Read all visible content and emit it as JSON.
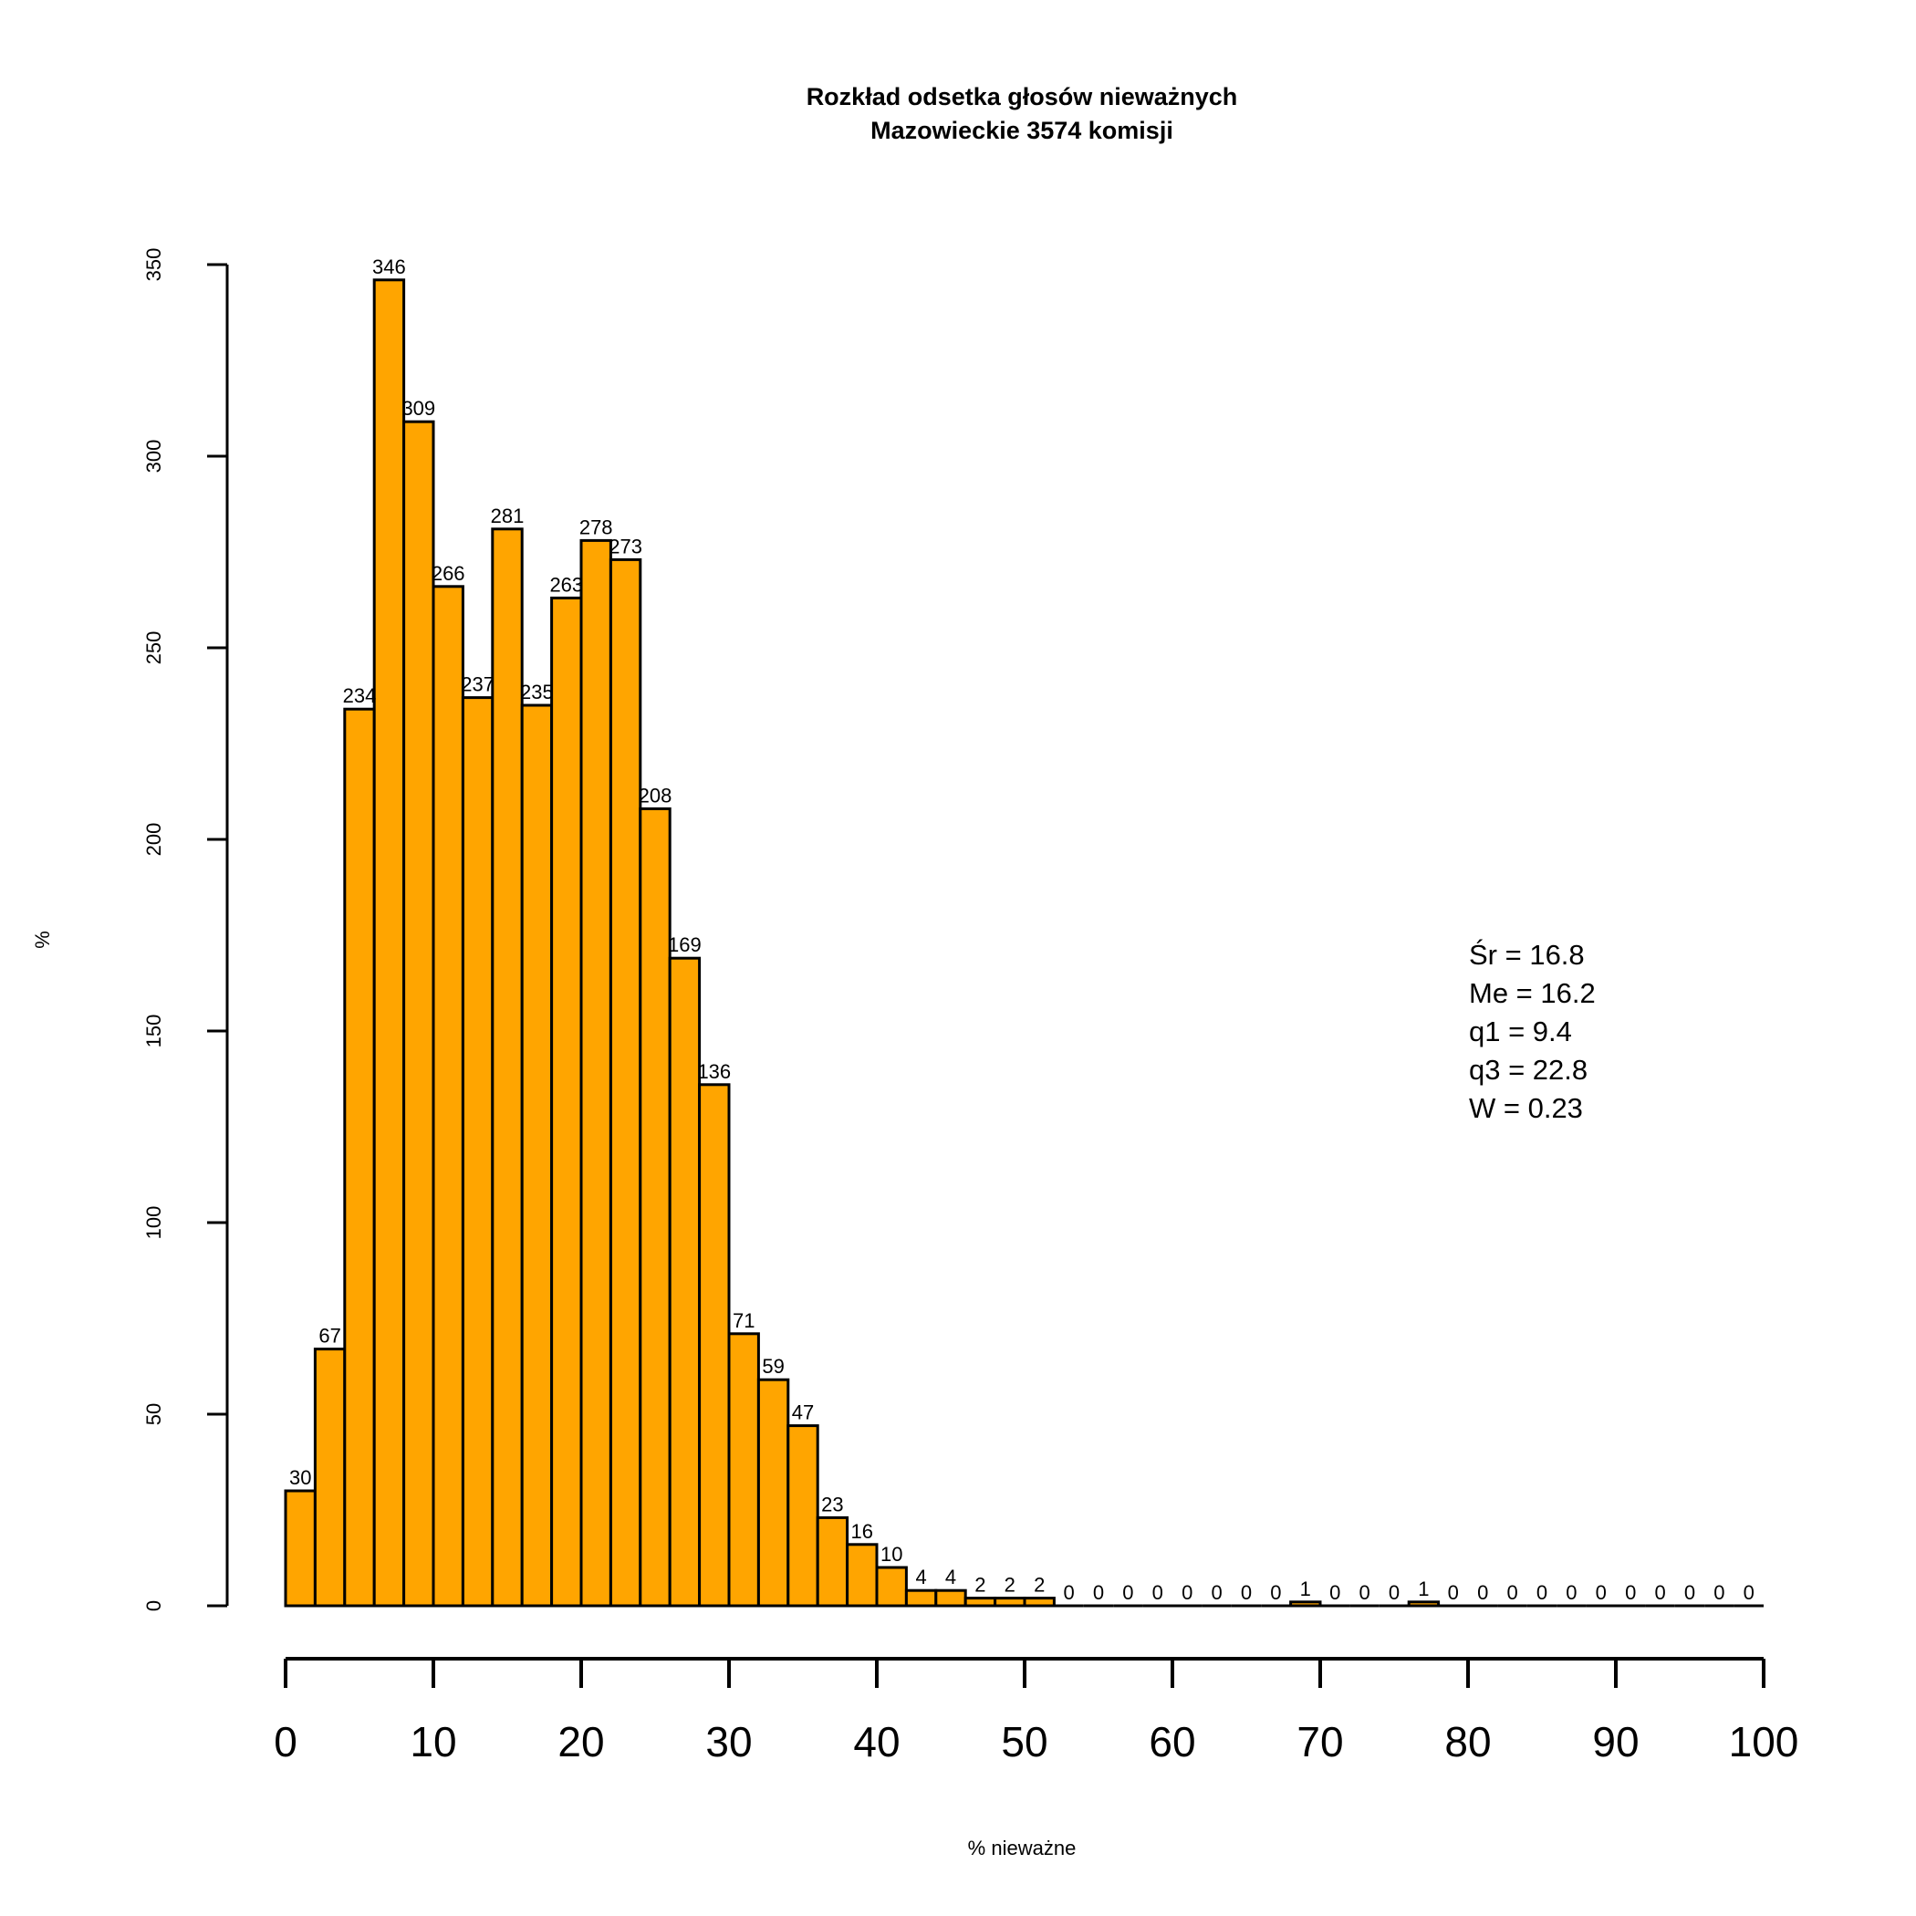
{
  "chart_data": {
    "type": "bar",
    "title": "Rozkład odsetka głosów nieważnych",
    "subtitle": "Mazowieckie 3574 komisji",
    "xlabel": "% nieważne",
    "ylabel": "%",
    "bin_width": 2,
    "xlim": [
      0,
      100
    ],
    "ylim": [
      0,
      350
    ],
    "bar_color": "#FFA500",
    "edge_color": "#000000",
    "y_ticks": [
      0,
      50,
      100,
      150,
      200,
      250,
      300,
      350
    ],
    "x_ticks": [
      0,
      10,
      20,
      30,
      40,
      50,
      60,
      70,
      80,
      90,
      100
    ],
    "values": [
      30,
      67,
      234,
      346,
      309,
      266,
      237,
      281,
      235,
      263,
      278,
      273,
      208,
      169,
      136,
      71,
      59,
      47,
      23,
      16,
      10,
      4,
      4,
      2,
      2,
      2,
      0,
      0,
      0,
      0,
      0,
      0,
      0,
      0,
      1,
      0,
      0,
      0,
      1,
      0,
      0,
      0,
      0,
      0,
      0,
      0,
      0,
      0,
      0,
      0
    ],
    "stats": [
      "Śr = 16.8",
      "Me = 16.2",
      "q1 = 9.4",
      "q3 = 22.8",
      "W = 0.23"
    ]
  }
}
